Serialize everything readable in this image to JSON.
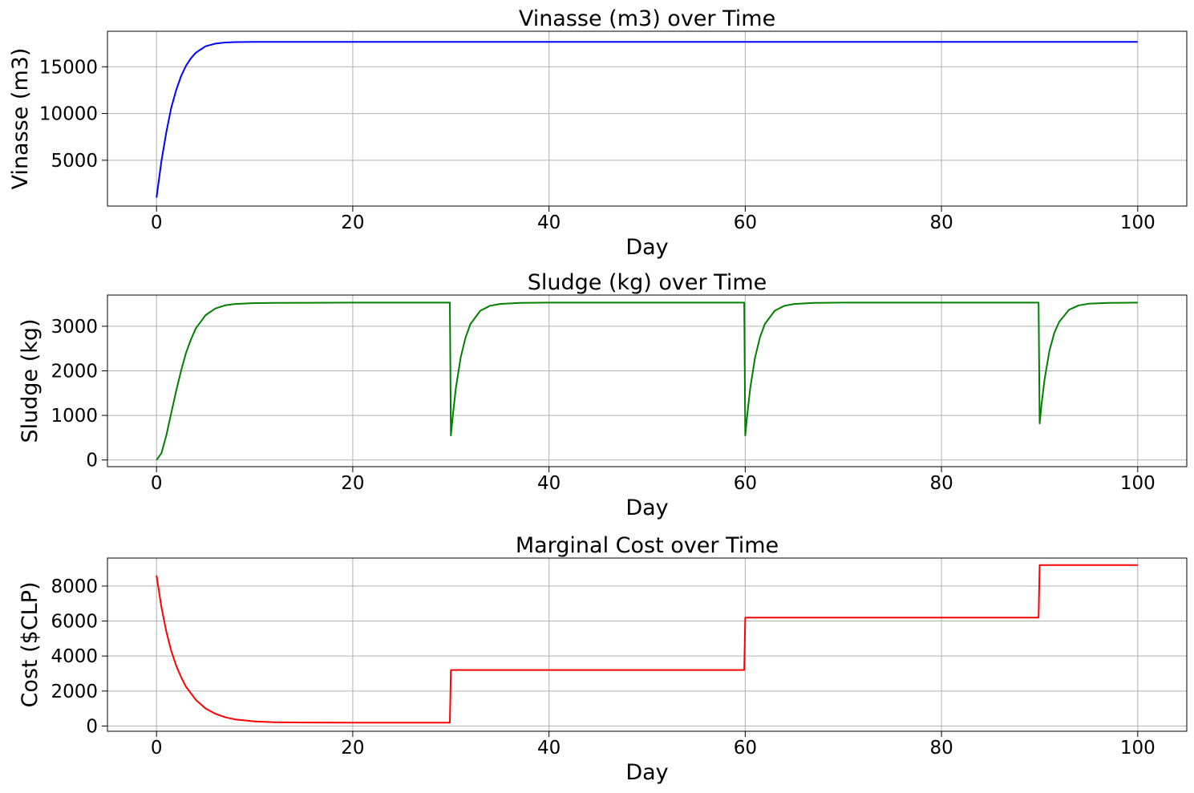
{
  "chart_data": [
    {
      "type": "line",
      "title": "Vinasse (m3) over Time",
      "xlabel": "Day",
      "ylabel": "Vinasse (m3)",
      "xlim": [
        -5,
        105
      ],
      "ylim": [
        100,
        18800
      ],
      "xticks": [
        0,
        20,
        40,
        60,
        80,
        100
      ],
      "yticks": [
        5000,
        10000,
        15000
      ],
      "grid": true,
      "series": [
        {
          "color": "#0000ff",
          "x": [
            0,
            0.5,
            1,
            1.5,
            2,
            2.5,
            3,
            3.5,
            4,
            5,
            6,
            7,
            8,
            10,
            12,
            15,
            20,
            30,
            40,
            50,
            60,
            70,
            80,
            90,
            100
          ],
          "y": [
            1000,
            4900,
            8000,
            10600,
            12500,
            14000,
            15100,
            15900,
            16500,
            17200,
            17480,
            17600,
            17640,
            17660,
            17665,
            17668,
            17670,
            17670,
            17670,
            17670,
            17670,
            17670,
            17670,
            17670,
            17670
          ]
        }
      ]
    },
    {
      "type": "line",
      "title": "Sludge (kg) over Time",
      "xlabel": "Day",
      "ylabel": "Sludge (kg)",
      "xlim": [
        -5,
        105
      ],
      "ylim": [
        -150,
        3700
      ],
      "xticks": [
        0,
        20,
        40,
        60,
        80,
        100
      ],
      "yticks": [
        0,
        1000,
        2000,
        3000
      ],
      "grid": true,
      "series": [
        {
          "color": "#008000",
          "x": [
            0,
            0.5,
            1,
            1.5,
            2,
            2.5,
            3,
            3.5,
            4,
            5,
            6,
            7,
            8,
            10,
            12,
            15,
            20,
            29.9,
            30,
            30.2,
            30.5,
            31,
            31.5,
            32,
            33,
            34,
            35,
            37,
            40,
            50,
            59.9,
            60,
            60.2,
            60.5,
            61,
            61.5,
            62,
            63,
            64,
            65,
            67,
            70,
            80,
            89.9,
            90,
            90.2,
            90.5,
            91,
            91.5,
            92,
            93,
            94,
            95,
            97,
            100
          ],
          "y": [
            0,
            150,
            550,
            1050,
            1550,
            2000,
            2400,
            2700,
            2950,
            3250,
            3400,
            3470,
            3500,
            3520,
            3525,
            3528,
            3530,
            3530,
            550,
            1000,
            1600,
            2300,
            2750,
            3050,
            3350,
            3460,
            3500,
            3525,
            3530,
            3530,
            3530,
            550,
            1000,
            1600,
            2300,
            2750,
            3050,
            3350,
            3460,
            3500,
            3525,
            3530,
            3530,
            3530,
            820,
            1250,
            1800,
            2450,
            2850,
            3100,
            3370,
            3470,
            3505,
            3525,
            3530
          ]
        }
      ]
    },
    {
      "type": "line",
      "title": "Marginal Cost over Time",
      "xlabel": "Day",
      "ylabel": "Cost ($CLP)",
      "xlim": [
        -5,
        105
      ],
      "ylim": [
        -300,
        9600
      ],
      "xticks": [
        0,
        20,
        40,
        60,
        80,
        100
      ],
      "yticks": [
        0,
        2000,
        4000,
        6000,
        8000
      ],
      "grid": true,
      "series": [
        {
          "color": "#ff0000",
          "x": [
            0,
            0.5,
            1,
            1.5,
            2,
            2.5,
            3,
            4,
            5,
            6,
            7,
            8,
            10,
            12,
            15,
            20,
            29.9,
            30,
            59.9,
            60,
            89.9,
            90,
            100
          ],
          "y": [
            8600,
            6800,
            5400,
            4300,
            3450,
            2800,
            2250,
            1500,
            1000,
            700,
            500,
            380,
            260,
            220,
            200,
            190,
            190,
            3200,
            3200,
            6200,
            6200,
            9200,
            9200
          ]
        }
      ]
    }
  ]
}
